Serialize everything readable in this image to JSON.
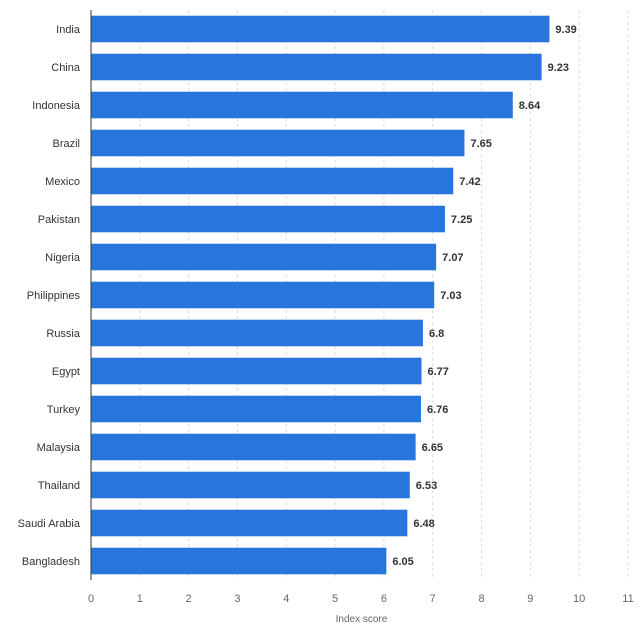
{
  "chart_data": {
    "type": "bar",
    "orientation": "horizontal",
    "categories": [
      "India",
      "China",
      "Indonesia",
      "Brazil",
      "Mexico",
      "Pakistan",
      "Nigeria",
      "Philippines",
      "Russia",
      "Egypt",
      "Turkey",
      "Malaysia",
      "Thailand",
      "Saudi Arabia",
      "Bangladesh"
    ],
    "values": [
      9.39,
      9.23,
      8.64,
      7.65,
      7.42,
      7.25,
      7.07,
      7.03,
      6.8,
      6.77,
      6.76,
      6.65,
      6.53,
      6.48,
      6.05
    ],
    "value_labels": [
      "9.39",
      "9.23",
      "8.64",
      "7.65",
      "7.42",
      "7.25",
      "7.07",
      "7.03",
      "6.8",
      "6.77",
      "6.76",
      "6.65",
      "6.53",
      "6.48",
      "6.05"
    ],
    "xlabel": "Index score",
    "ylabel": "",
    "xlim": [
      0,
      11
    ],
    "xticks": [
      "0",
      "1",
      "2",
      "3",
      "4",
      "5",
      "6",
      "7",
      "8",
      "9",
      "10",
      "11"
    ],
    "grid": "vertical-dashed",
    "bar_color": "#2876dd"
  }
}
